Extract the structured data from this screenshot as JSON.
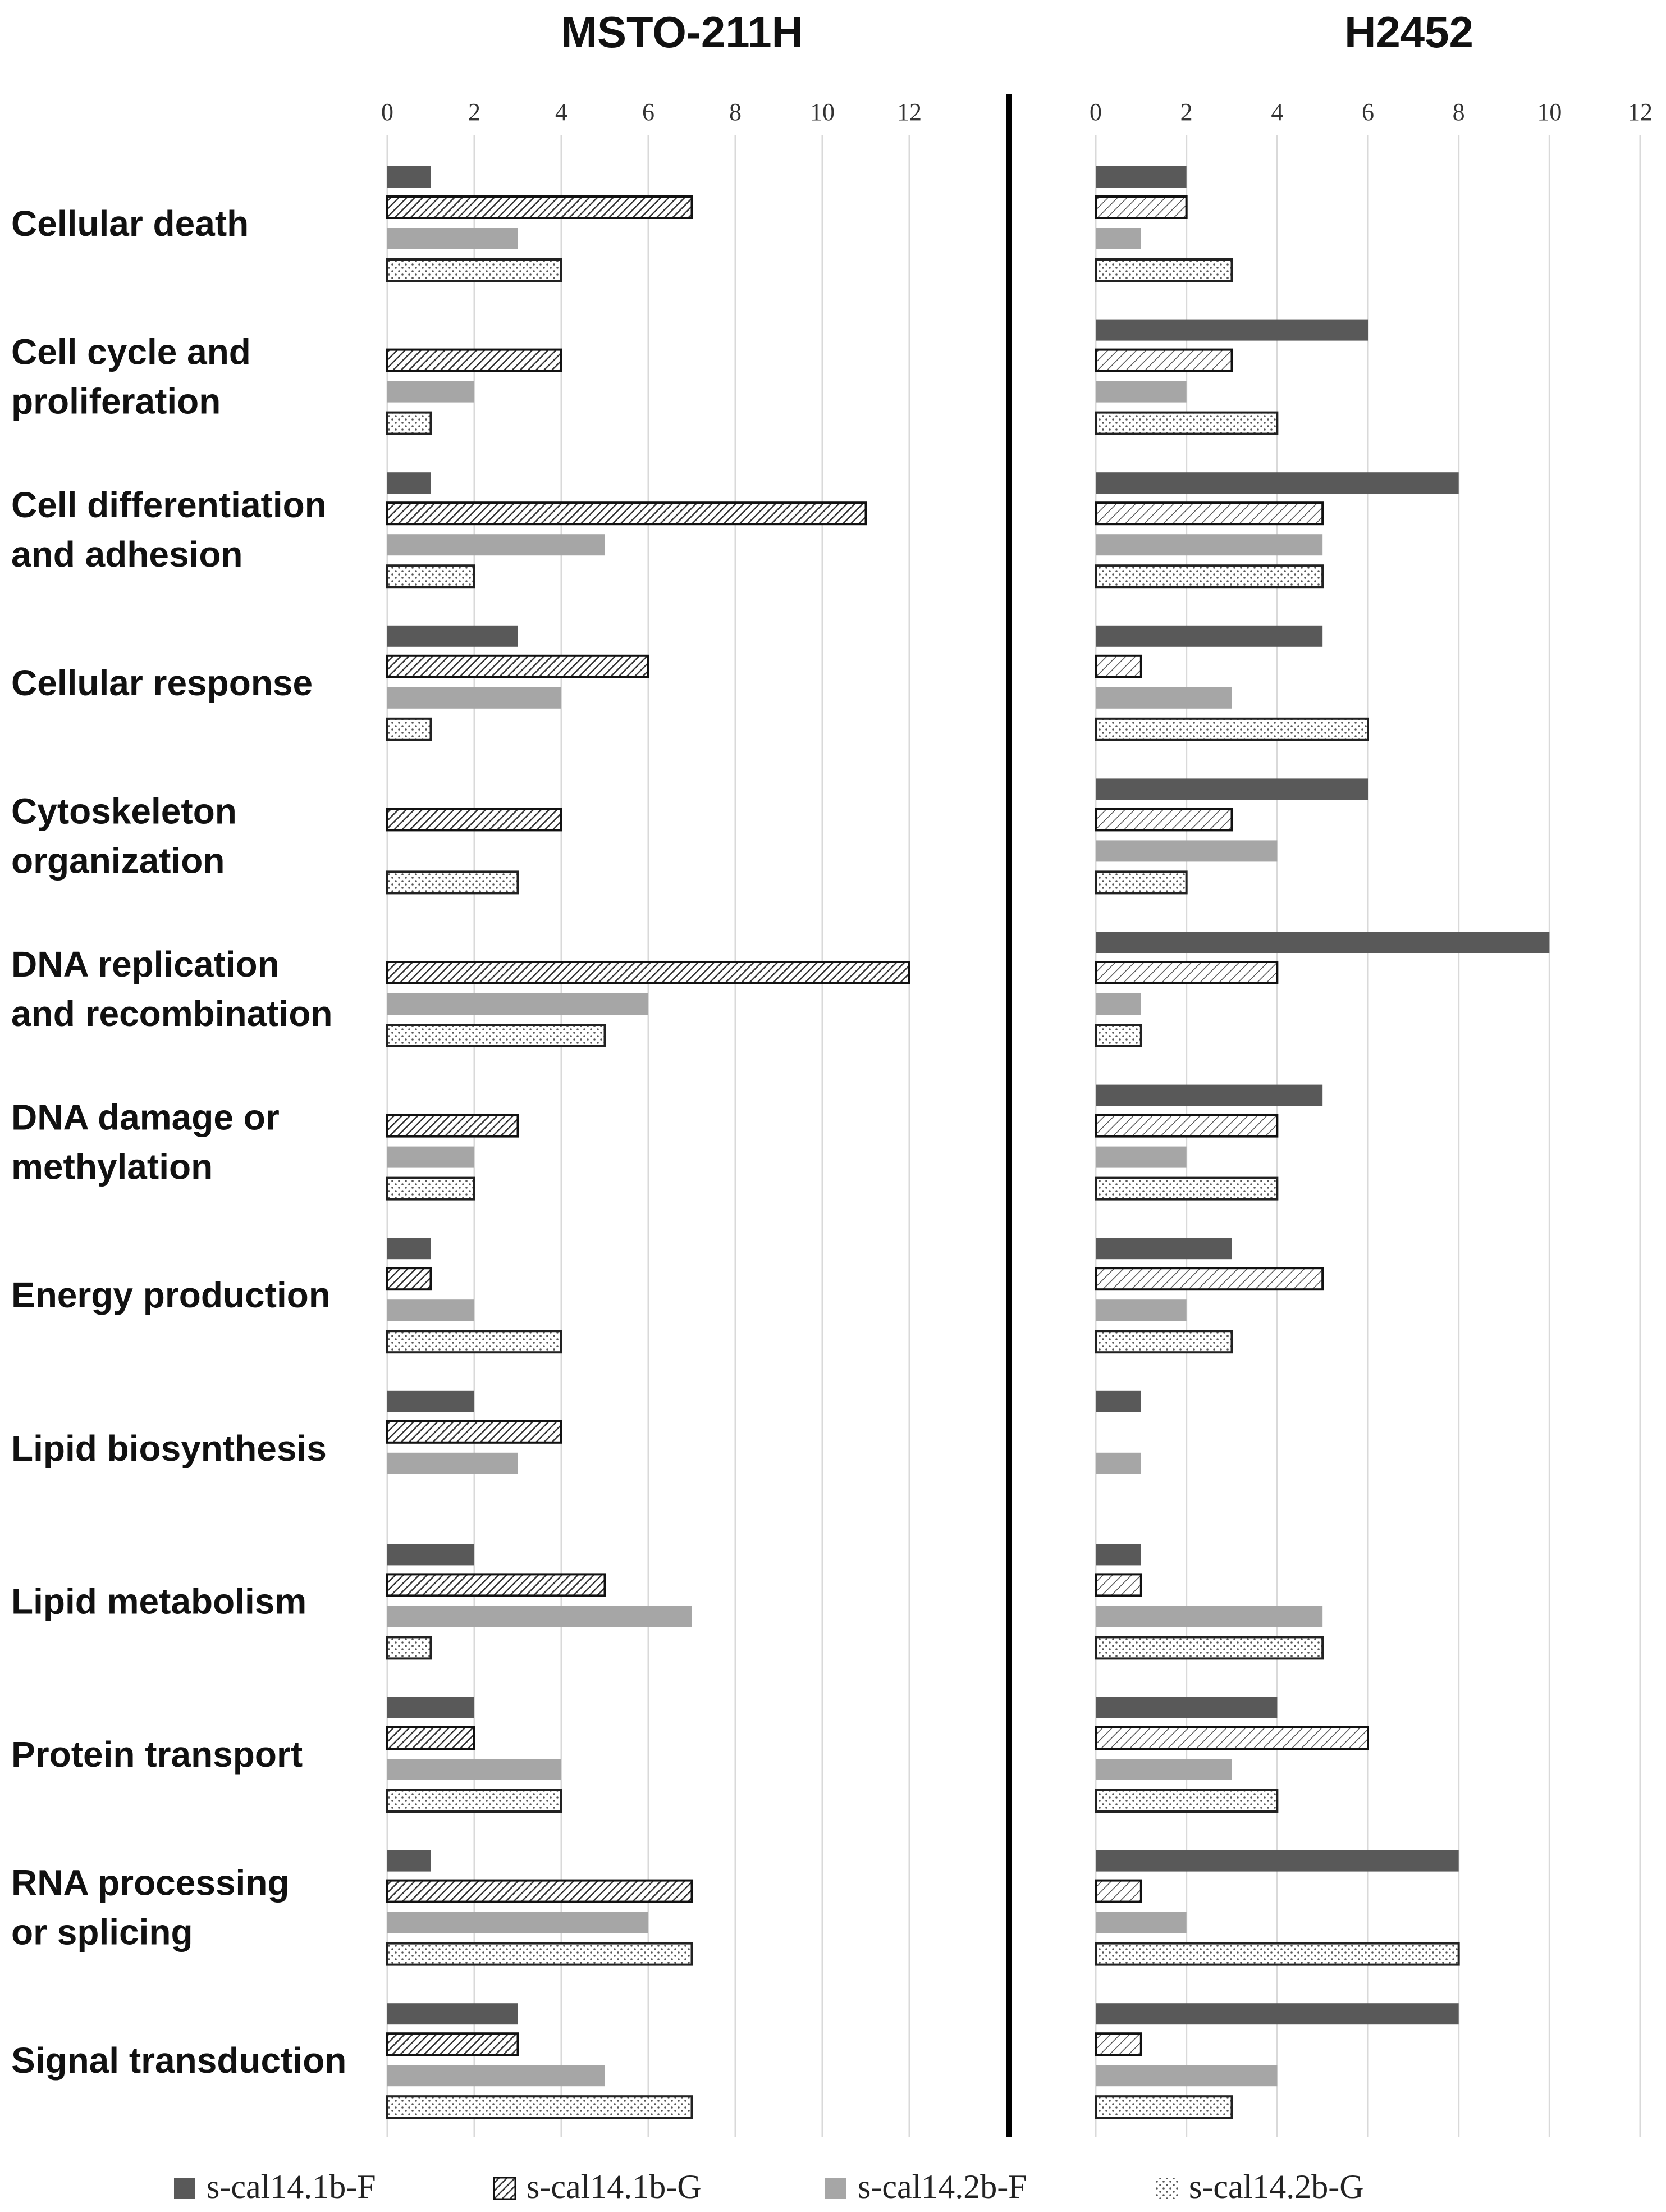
{
  "chart_data": {
    "type": "bar",
    "orientation": "horizontal",
    "categories": [
      [
        "Cellular death"
      ],
      [
        "Cell cycle and",
        "proliferation"
      ],
      [
        "Cell differentiation",
        "and adhesion"
      ],
      [
        "Cellular response"
      ],
      [
        "Cytoskeleton",
        "organization"
      ],
      [
        "DNA replication",
        "and recombination"
      ],
      [
        "DNA damage or",
        "methylation"
      ],
      [
        "Energy production"
      ],
      [
        "Lipid biosynthesis"
      ],
      [
        "Lipid metabolism"
      ],
      [
        "Protein transport"
      ],
      [
        "RNA processing",
        "or splicing"
      ],
      [
        "Signal transduction"
      ]
    ],
    "series_names": [
      "s-cal14.1b-F",
      "s-cal14.1b-G",
      "s-cal14.2b-F",
      "s-cal14.2b-G"
    ],
    "panels": [
      {
        "title": "MSTO-211H",
        "xlim": [
          0,
          12
        ],
        "ticks": [
          "0",
          "2",
          "4",
          "6",
          "8",
          "10",
          "12"
        ],
        "series": [
          {
            "name": "s-cal14.1b-F",
            "values": [
              1,
              0,
              1,
              3,
              0,
              0,
              0,
              1,
              2,
              2,
              2,
              1,
              3
            ]
          },
          {
            "name": "s-cal14.1b-G",
            "values": [
              7,
              4,
              11,
              6,
              4,
              12,
              3,
              1,
              4,
              5,
              2,
              7,
              3
            ]
          },
          {
            "name": "s-cal14.2b-F",
            "values": [
              3,
              2,
              5,
              4,
              0,
              6,
              2,
              2,
              3,
              7,
              4,
              6,
              5
            ]
          },
          {
            "name": "s-cal14.2b-G",
            "values": [
              4,
              1,
              2,
              1,
              3,
              5,
              2,
              4,
              0,
              1,
              4,
              7,
              7
            ]
          }
        ]
      },
      {
        "title": "H2452",
        "xlim": [
          0,
          12
        ],
        "ticks": [
          "0",
          "2",
          "4",
          "6",
          "8",
          "10",
          "12"
        ],
        "series": [
          {
            "name": "s-cal14.1b-F",
            "values": [
              2,
              6,
              8,
              5,
              6,
              10,
              5,
              3,
              1,
              1,
              4,
              8,
              8
            ]
          },
          {
            "name": "s-cal14.1b-G",
            "values": [
              2,
              3,
              5,
              1,
              3,
              4,
              4,
              5,
              0,
              1,
              6,
              1,
              1
            ]
          },
          {
            "name": "s-cal14.2b-F",
            "values": [
              1,
              2,
              5,
              3,
              4,
              1,
              2,
              2,
              1,
              5,
              3,
              2,
              4
            ]
          },
          {
            "name": "s-cal14.2b-G",
            "values": [
              3,
              4,
              5,
              6,
              2,
              1,
              4,
              3,
              0,
              5,
              4,
              8,
              3
            ]
          }
        ]
      }
    ],
    "colors": {
      "series1": "#595959",
      "series3": "#a6a6a6",
      "grid": "#d9d9d9",
      "divider": "#000000"
    }
  }
}
